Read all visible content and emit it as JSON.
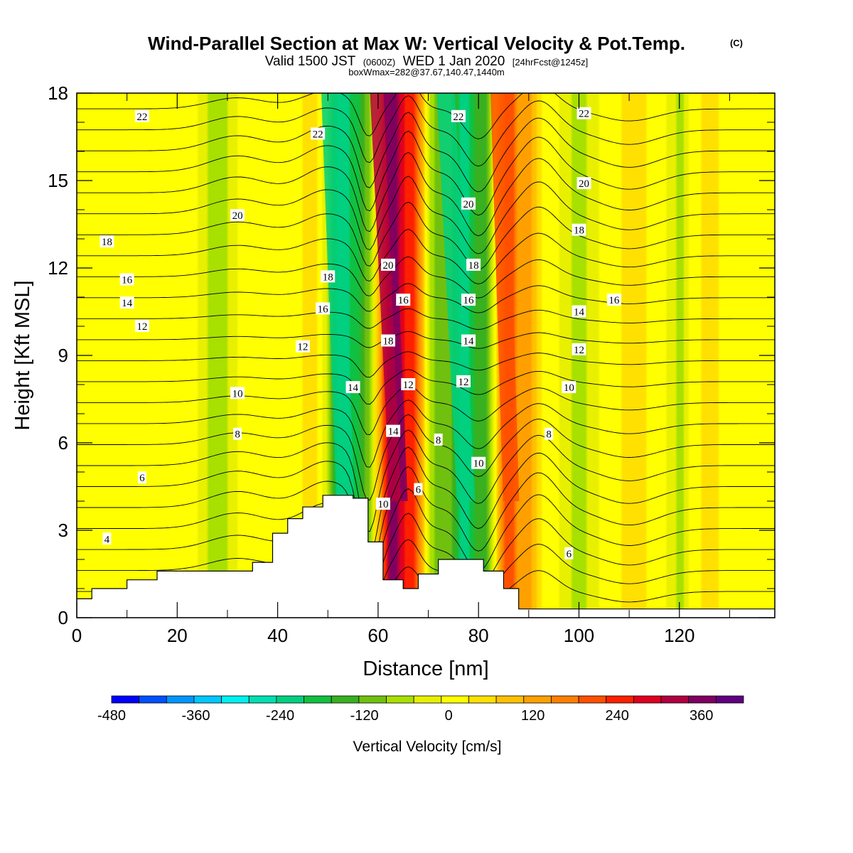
{
  "header": {
    "title": "Wind-Parallel Section at Max W: Vertical Velocity & Pot.Temp.",
    "copyright": "(C)",
    "valid_prefix": "Valid 1500 JST",
    "valid_utc": "(0600Z)",
    "valid_day": "WED 1 Jan 2020",
    "forecast": "[24hrFcst@1245z]",
    "box_info": "boxWmax=282@37.67,140.47,1440m"
  },
  "colors": {
    "terrain": "#ffffff",
    "background": "#f2f200",
    "contour": "#000000",
    "scale": [
      "#0000ff",
      "#0050ff",
      "#0096ff",
      "#00c8ff",
      "#00f0f0",
      "#00e0b0",
      "#00d080",
      "#10c040",
      "#38b020",
      "#70c010",
      "#a8e000",
      "#e8f000",
      "#ffff00",
      "#ffe000",
      "#ffc000",
      "#ffa000",
      "#ff8000",
      "#ff5000",
      "#ff2000",
      "#e00020",
      "#b00040",
      "#800060",
      "#600080"
    ]
  },
  "chart_data": {
    "type": "heatmap",
    "title": "Wind-Parallel Section at Max W: Vertical Velocity & Pot.Temp.",
    "xlabel": "Distance [nm]",
    "ylabel": "Height [Kft MSL]",
    "xlim": [
      0,
      139
    ],
    "ylim": [
      0,
      18
    ],
    "x_ticks": [
      0,
      20,
      40,
      60,
      80,
      100,
      120
    ],
    "y_ticks": [
      0,
      3,
      6,
      9,
      12,
      15,
      18
    ],
    "colorbar": {
      "label": "Vertical Velocity [cm/s]",
      "range": [
        -480,
        420
      ],
      "step": 40,
      "tick_values": [
        -480,
        -360,
        -240,
        -120,
        0,
        120,
        240,
        360
      ]
    },
    "vertical_velocity_bands": [
      {
        "x": 28,
        "w": -80,
        "width": 3
      },
      {
        "x": 47,
        "w": 50,
        "width": 3
      },
      {
        "x": 53,
        "w": -240,
        "width": 3
      },
      {
        "x": 57,
        "w": -120,
        "width": 2
      },
      {
        "x": 63,
        "w": 360,
        "width": 2.5
      },
      {
        "x": 67,
        "w": 220,
        "width": 2
      },
      {
        "x": 72,
        "w": -120,
        "width": 2
      },
      {
        "x": 77,
        "w": -240,
        "width": 2.5
      },
      {
        "x": 81,
        "w": -140,
        "width": 2
      },
      {
        "x": 86,
        "w": 220,
        "width": 2.2
      },
      {
        "x": 90,
        "w": 120,
        "width": 2
      },
      {
        "x": 100,
        "w": -70,
        "width": 3
      },
      {
        "x": 111,
        "w": 60,
        "width": 3
      },
      {
        "x": 120,
        "w": -60,
        "width": 2
      },
      {
        "x": 126,
        "w": 40,
        "width": 3
      }
    ],
    "terrain_profile": {
      "x": [
        0,
        3,
        3,
        10,
        10,
        16,
        16,
        28,
        28,
        35,
        35,
        39,
        39,
        42,
        42,
        45,
        45,
        49,
        49,
        55,
        55,
        58,
        58,
        61,
        61,
        65,
        65,
        68,
        68,
        72,
        72,
        81,
        81,
        85,
        85,
        88,
        88,
        139
      ],
      "height": [
        0.65,
        0.65,
        1.0,
        1.0,
        1.3,
        1.3,
        1.6,
        1.6,
        1.6,
        1.6,
        1.9,
        1.9,
        2.9,
        2.9,
        3.4,
        3.4,
        3.8,
        3.8,
        4.2,
        4.2,
        4.1,
        4.1,
        2.6,
        2.6,
        1.3,
        1.3,
        1.0,
        1.0,
        1.5,
        1.5,
        2.0,
        2.0,
        1.6,
        1.6,
        1.0,
        1.0,
        0.3,
        0.3
      ]
    },
    "potential_temperature_labels": [
      {
        "text": "22",
        "x": 13,
        "y": 17.2
      },
      {
        "text": "22",
        "x": 48,
        "y": 16.6
      },
      {
        "text": "22",
        "x": 76,
        "y": 17.2
      },
      {
        "text": "22",
        "x": 101,
        "y": 17.3
      },
      {
        "text": "20",
        "x": 32,
        "y": 13.8
      },
      {
        "text": "20",
        "x": 62,
        "y": 12.1
      },
      {
        "text": "20",
        "x": 78,
        "y": 14.2
      },
      {
        "text": "20",
        "x": 101,
        "y": 14.9
      },
      {
        "text": "18",
        "x": 6,
        "y": 12.9
      },
      {
        "text": "18",
        "x": 50,
        "y": 11.7
      },
      {
        "text": "18",
        "x": 62,
        "y": 9.5
      },
      {
        "text": "18",
        "x": 79,
        "y": 12.1
      },
      {
        "text": "18",
        "x": 100,
        "y": 13.3
      },
      {
        "text": "16",
        "x": 10,
        "y": 11.6
      },
      {
        "text": "16",
        "x": 49,
        "y": 10.6
      },
      {
        "text": "16",
        "x": 65,
        "y": 10.9
      },
      {
        "text": "16",
        "x": 78,
        "y": 10.9
      },
      {
        "text": "16",
        "x": 107,
        "y": 10.9
      },
      {
        "text": "14",
        "x": 10,
        "y": 10.8
      },
      {
        "text": "14",
        "x": 55,
        "y": 7.9
      },
      {
        "text": "14",
        "x": 63,
        "y": 6.4
      },
      {
        "text": "14",
        "x": 78,
        "y": 9.5
      },
      {
        "text": "14",
        "x": 100,
        "y": 10.5
      },
      {
        "text": "12",
        "x": 13,
        "y": 10.0
      },
      {
        "text": "12",
        "x": 45,
        "y": 9.3
      },
      {
        "text": "12",
        "x": 66,
        "y": 8.0
      },
      {
        "text": "12",
        "x": 77,
        "y": 8.1
      },
      {
        "text": "12",
        "x": 100,
        "y": 9.2
      },
      {
        "text": "10",
        "x": 32,
        "y": 7.7
      },
      {
        "text": "10",
        "x": 61,
        "y": 3.9
      },
      {
        "text": "10",
        "x": 80,
        "y": 5.3
      },
      {
        "text": "10",
        "x": 98,
        "y": 7.9
      },
      {
        "text": "8",
        "x": 32,
        "y": 6.3
      },
      {
        "text": "8",
        "x": 72,
        "y": 6.1
      },
      {
        "text": "8",
        "x": 94,
        "y": 6.3
      },
      {
        "text": "6",
        "x": 13,
        "y": 4.8
      },
      {
        "text": "6",
        "x": 68,
        "y": 4.4
      },
      {
        "text": "6",
        "x": 98,
        "y": 2.2
      },
      {
        "text": "4",
        "x": 6,
        "y": 2.7
      }
    ]
  }
}
